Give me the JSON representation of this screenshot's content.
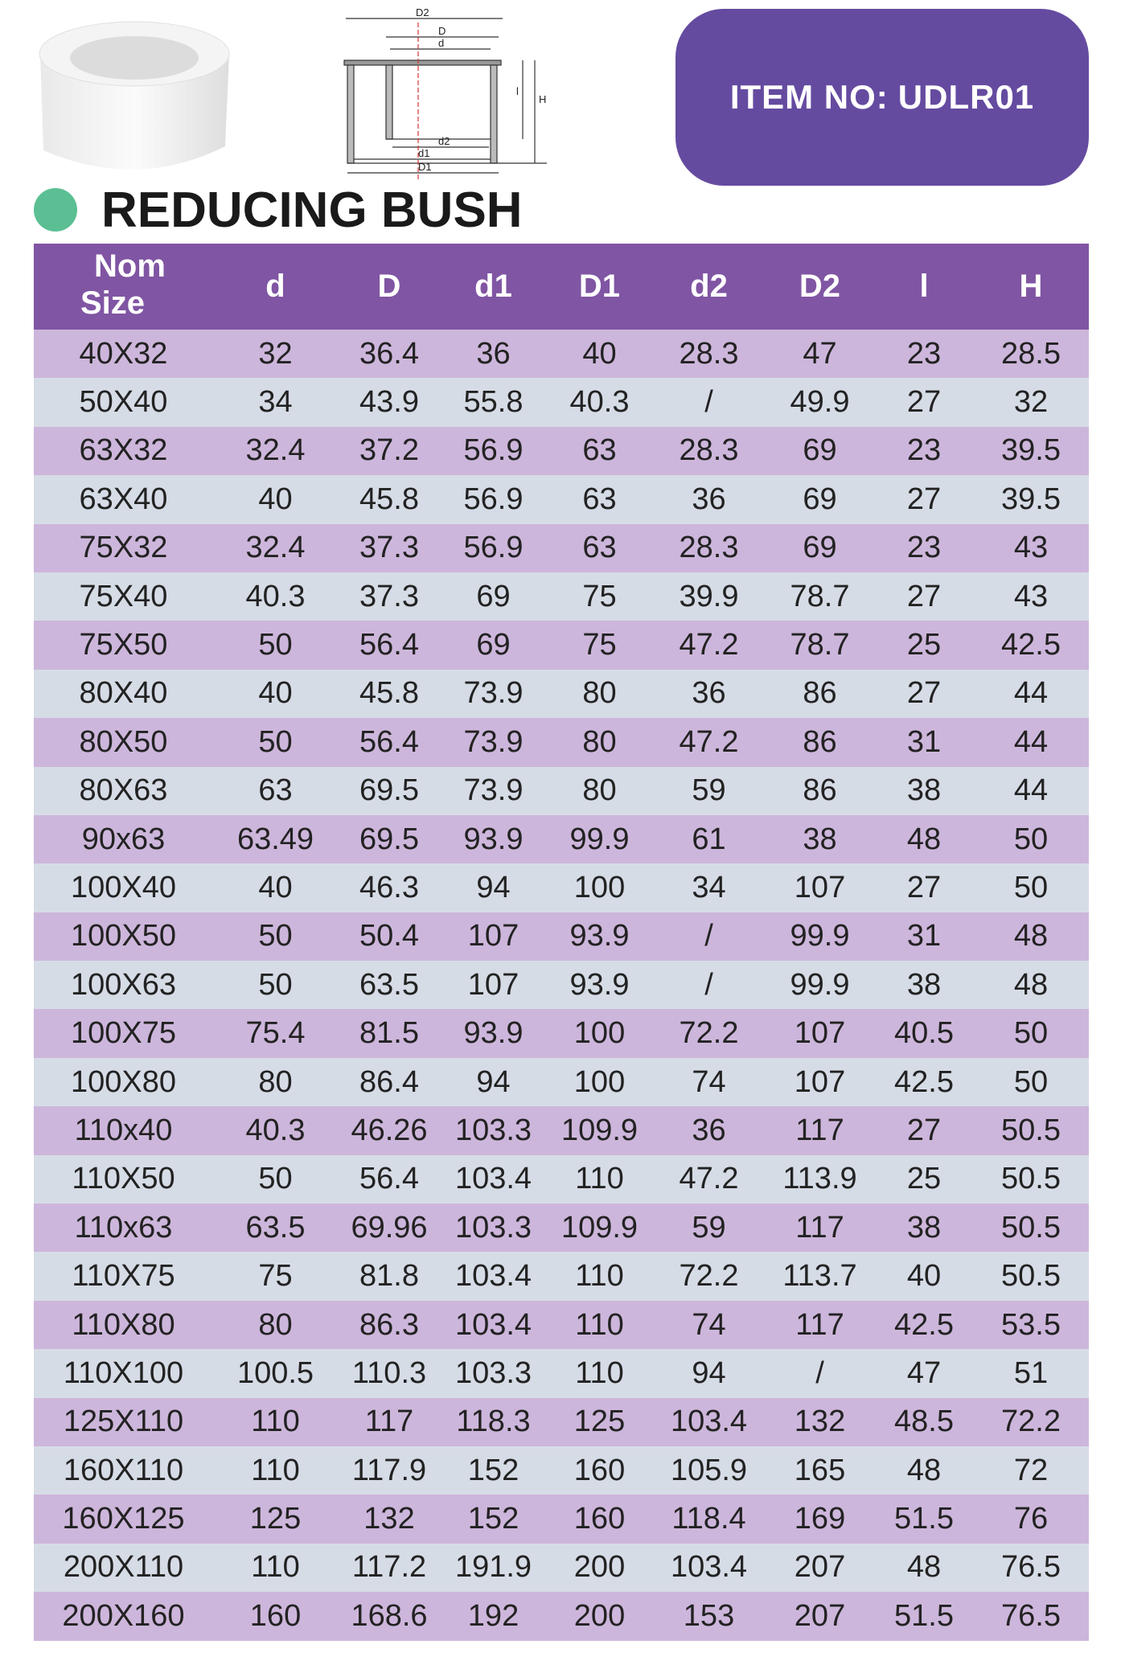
{
  "product": {
    "item_label": "ITEM NO:",
    "item_no": "UDLR01",
    "title": "REDUCING BUSH",
    "colors": {
      "item_box": "#654ba0",
      "header": "#8055a3",
      "row_purple": "#cdb6db",
      "row_gray": "#d6dce6",
      "dot": "#5bbf93"
    }
  },
  "diagram": {
    "labels": [
      "D2",
      "D",
      "d",
      "H",
      "l",
      "d2",
      "d1",
      "D1"
    ]
  },
  "table": {
    "headers": [
      "Nom",
      "Size",
      "d",
      "D",
      "d1",
      "D1",
      "d2",
      "D2",
      "l",
      "H"
    ],
    "rows": [
      [
        "40X32",
        "32",
        "36.4",
        "36",
        "40",
        "28.3",
        "47",
        "23",
        "28.5"
      ],
      [
        "50X40",
        "34",
        "43.9",
        "55.8",
        "40.3",
        "/",
        "49.9",
        "27",
        "32"
      ],
      [
        "63X32",
        "32.4",
        "37.2",
        "56.9",
        "63",
        "28.3",
        "69",
        "23",
        "39.5"
      ],
      [
        "63X40",
        "40",
        "45.8",
        "56.9",
        "63",
        "36",
        "69",
        "27",
        "39.5"
      ],
      [
        "75X32",
        "32.4",
        "37.3",
        "56.9",
        "63",
        "28.3",
        "69",
        "23",
        "43"
      ],
      [
        "75X40",
        "40.3",
        "37.3",
        "69",
        "75",
        "39.9",
        "78.7",
        "27",
        "43"
      ],
      [
        "75X50",
        "50",
        "56.4",
        "69",
        "75",
        "47.2",
        "78.7",
        "25",
        "42.5"
      ],
      [
        "80X40",
        "40",
        "45.8",
        "73.9",
        "80",
        "36",
        "86",
        "27",
        "44"
      ],
      [
        "80X50",
        "50",
        "56.4",
        "73.9",
        "80",
        "47.2",
        "86",
        "31",
        "44"
      ],
      [
        "80X63",
        "63",
        "69.5",
        "73.9",
        "80",
        "59",
        "86",
        "38",
        "44"
      ],
      [
        "90x63",
        "63.49",
        "69.5",
        "93.9",
        "99.9",
        "61",
        "38",
        "48",
        "50"
      ],
      [
        "100X40",
        "40",
        "46.3",
        "94",
        "100",
        "34",
        "107",
        "27",
        "50"
      ],
      [
        "100X50",
        "50",
        "50.4",
        "107",
        "93.9",
        "/",
        "99.9",
        "31",
        "48"
      ],
      [
        "100X63",
        "50",
        "63.5",
        "107",
        "93.9",
        "/",
        "99.9",
        "38",
        "48"
      ],
      [
        "100X75",
        "75.4",
        "81.5",
        "93.9",
        "100",
        "72.2",
        "107",
        "40.5",
        "50"
      ],
      [
        "100X80",
        "80",
        "86.4",
        "94",
        "100",
        "74",
        "107",
        "42.5",
        "50"
      ],
      [
        "110x40",
        "40.3",
        "46.26",
        "103.3",
        "109.9",
        "36",
        "117",
        "27",
        "50.5"
      ],
      [
        "110X50",
        "50",
        "56.4",
        "103.4",
        "110",
        "47.2",
        "113.9",
        "25",
        "50.5"
      ],
      [
        "110x63",
        "63.5",
        "69.96",
        "103.3",
        "109.9",
        "59",
        "117",
        "38",
        "50.5"
      ],
      [
        "110X75",
        "75",
        "81.8",
        "103.4",
        "110",
        "72.2",
        "113.7",
        "40",
        "50.5"
      ],
      [
        "110X80",
        "80",
        "86.3",
        "103.4",
        "110",
        "74",
        "117",
        "42.5",
        "53.5"
      ],
      [
        "110X100",
        "100.5",
        "110.3",
        "103.3",
        "110",
        "94",
        "/",
        "47",
        "51"
      ],
      [
        "125X110",
        "110",
        "117",
        "118.3",
        "125",
        "103.4",
        "132",
        "48.5",
        "72.2"
      ],
      [
        "160X110",
        "110",
        "117.9",
        "152",
        "160",
        "105.9",
        "165",
        "48",
        "72"
      ],
      [
        "160X125",
        "125",
        "132",
        "152",
        "160",
        "118.4",
        "169",
        "51.5",
        "76"
      ],
      [
        "200X110",
        "110",
        "117.2",
        "191.9",
        "200",
        "103.4",
        "207",
        "48",
        "76.5"
      ],
      [
        "200X160",
        "160",
        "168.6",
        "192",
        "200",
        "153",
        "207",
        "51.5",
        "76.5"
      ]
    ]
  }
}
